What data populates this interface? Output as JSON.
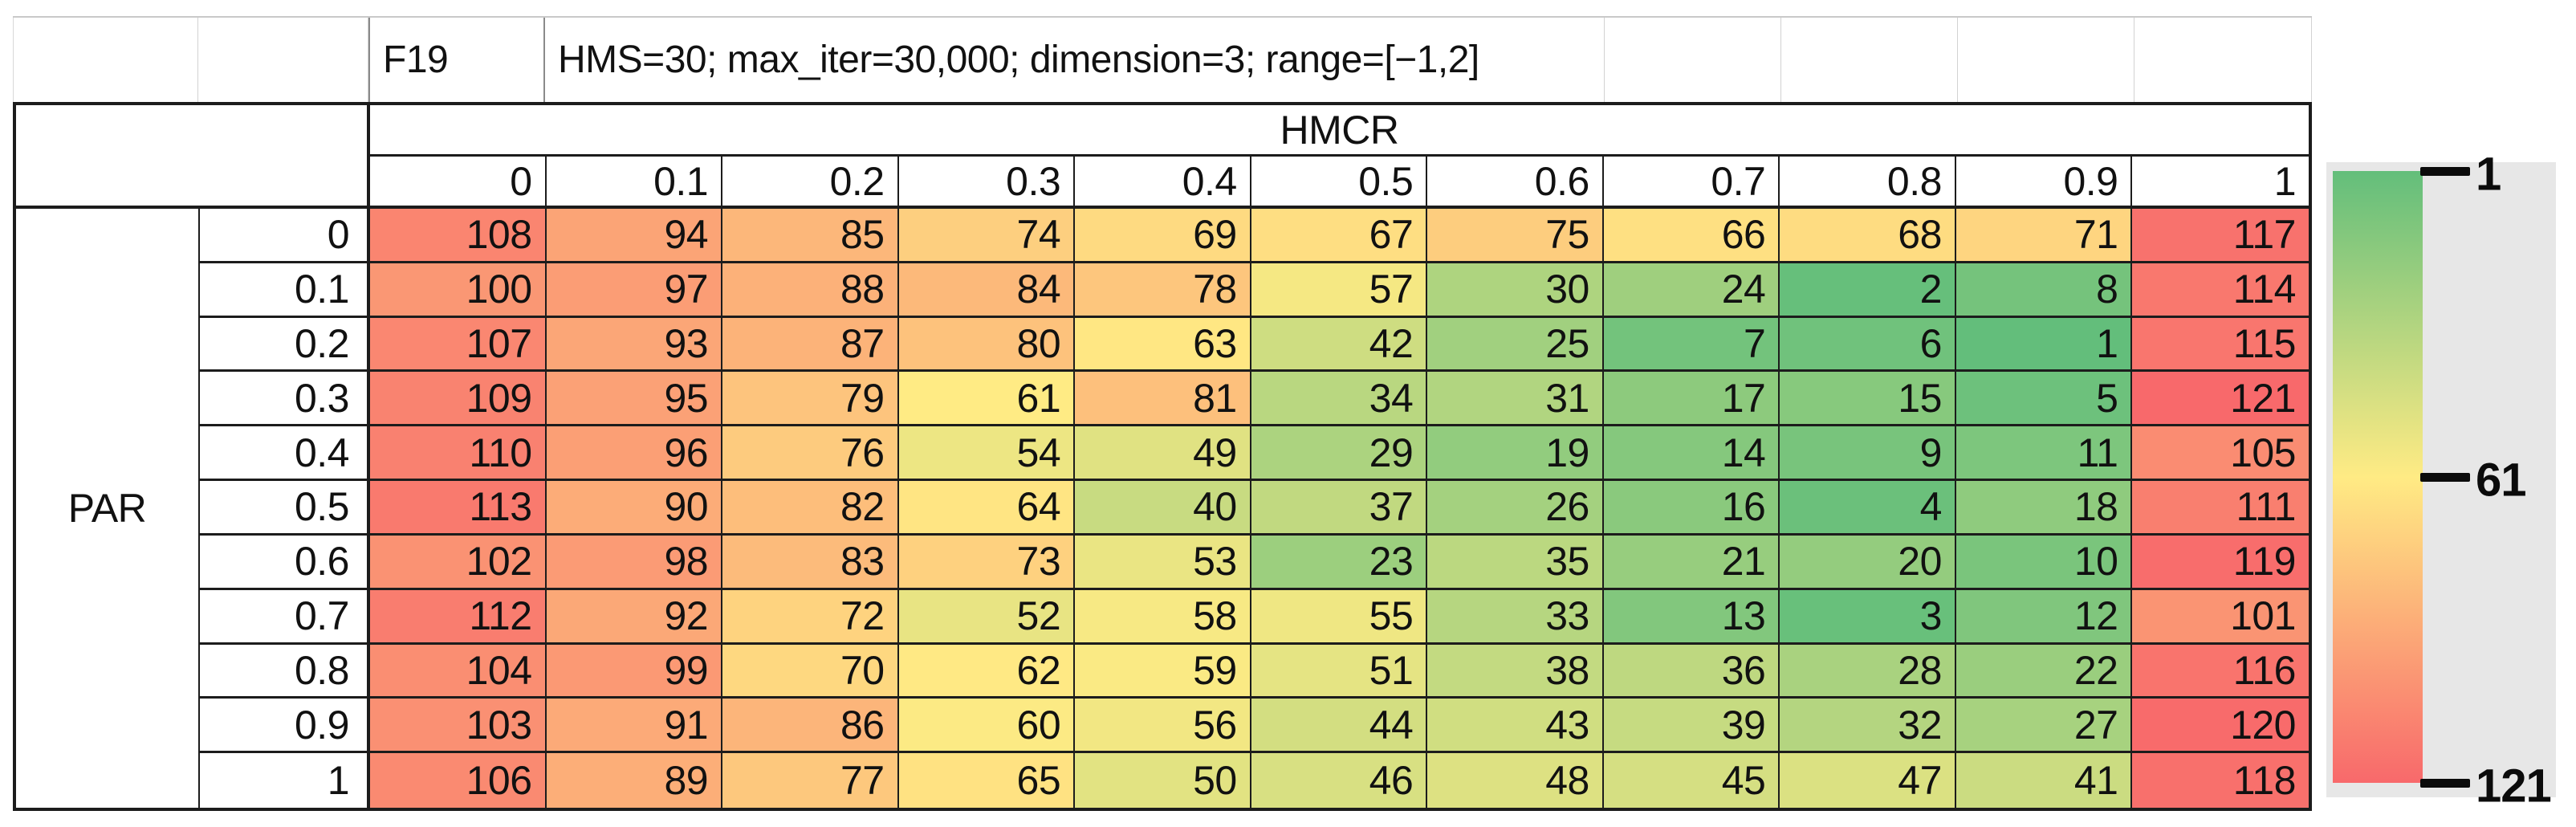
{
  "title": {
    "function_label": "F19",
    "settings": "HMS=30; max_iter=30,000; dimension=3; range=[−1,2]"
  },
  "chart_data": {
    "type": "heatmap",
    "title": "F19 — HMS=30; max_iter=30,000; dimension=3; range=[−1,2]",
    "col_axis_label": "HMCR",
    "row_axis_label": "PAR",
    "col_labels": [
      "0",
      "0.1",
      "0.2",
      "0.3",
      "0.4",
      "0.5",
      "0.6",
      "0.7",
      "0.8",
      "0.9",
      "1"
    ],
    "row_labels": [
      "0",
      "0.1",
      "0.2",
      "0.3",
      "0.4",
      "0.5",
      "0.6",
      "0.7",
      "0.8",
      "0.9",
      "1"
    ],
    "values": [
      [
        108,
        94,
        85,
        74,
        69,
        67,
        75,
        66,
        68,
        71,
        117
      ],
      [
        100,
        97,
        88,
        84,
        78,
        57,
        30,
        24,
        2,
        8,
        114
      ],
      [
        107,
        93,
        87,
        80,
        63,
        42,
        25,
        7,
        6,
        1,
        115
      ],
      [
        109,
        95,
        79,
        61,
        81,
        34,
        31,
        17,
        15,
        5,
        121
      ],
      [
        110,
        96,
        76,
        54,
        49,
        29,
        19,
        14,
        9,
        11,
        105
      ],
      [
        113,
        90,
        82,
        64,
        40,
        37,
        26,
        16,
        4,
        18,
        111
      ],
      [
        102,
        98,
        83,
        73,
        53,
        23,
        35,
        21,
        20,
        10,
        119
      ],
      [
        112,
        92,
        72,
        52,
        58,
        55,
        33,
        13,
        3,
        12,
        101
      ],
      [
        104,
        99,
        70,
        62,
        59,
        51,
        38,
        36,
        28,
        22,
        116
      ],
      [
        103,
        91,
        86,
        60,
        56,
        44,
        43,
        39,
        32,
        27,
        120
      ],
      [
        106,
        89,
        77,
        65,
        50,
        46,
        48,
        45,
        47,
        41,
        118
      ]
    ],
    "color_scale": {
      "min_value": 1,
      "min_color": "#63BE7B",
      "mid_value": 61,
      "mid_color": "#FFEB84",
      "max_value": 121,
      "max_color": "#F8696B"
    },
    "legend": {
      "background": "#E7E7E7",
      "ticks": [
        {
          "label": "1",
          "t": 0
        },
        {
          "label": "61",
          "t": 0.5
        },
        {
          "label": "121",
          "t": 1
        }
      ]
    }
  }
}
